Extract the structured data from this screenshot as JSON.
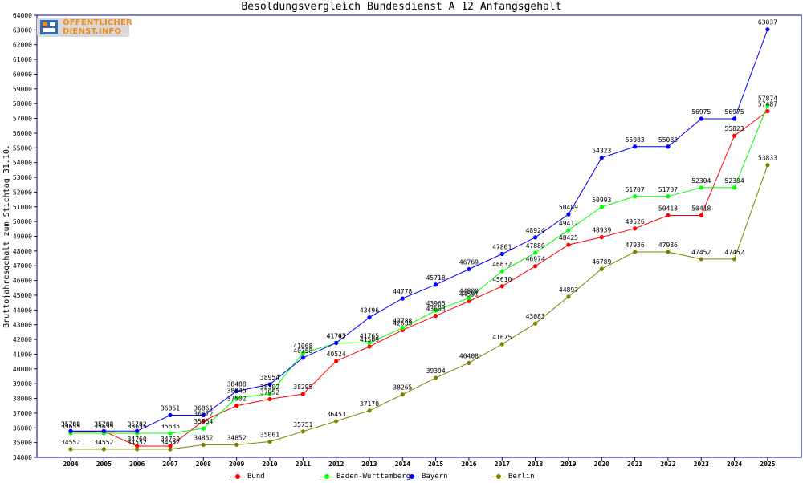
{
  "title": "Besoldungsvergleich Bundesdienst A 12 Anfangsgehalt",
  "logo": {
    "line1": "ÖFFENTLICHER",
    "line2": "DIENST.INFO"
  },
  "chart_data": {
    "type": "line",
    "title": "Besoldungsvergleich Bundesdienst A 12 Anfangsgehalt",
    "xlabel": "",
    "ylabel": "Bruttojahresgehalt zum Stichtag 31.10.",
    "ylim": [
      34000,
      64000
    ],
    "ystep": 1000,
    "grid": false,
    "legend_position": "bottom",
    "categories": [
      "2004",
      "2005",
      "2006",
      "2007",
      "2008",
      "2009",
      "2010",
      "2011",
      "2012",
      "2013",
      "2014",
      "2015",
      "2016",
      "2017",
      "2018",
      "2019",
      "2020",
      "2021",
      "2022",
      "2023",
      "2024",
      "2025"
    ],
    "series": [
      {
        "name": "Bund",
        "color": "#ff0000",
        "values": [
          35766,
          35766,
          34760,
          34760,
          36472,
          37502,
          37952,
          38295,
          40524,
          41509,
          42633,
          43603,
          44591,
          45610,
          46974,
          48425,
          48939,
          49526,
          50418,
          50418,
          55823,
          57487
        ]
      },
      {
        "name": "Baden-Württemberg",
        "color": "#00ff00",
        "values": [
          35635,
          35635,
          35635,
          35635,
          35954,
          38045,
          38302,
          41068,
          41747,
          41765,
          42788,
          43965,
          44800,
          46632,
          47880,
          49412,
          50993,
          51707,
          51707,
          52304,
          52304,
          57874
        ]
      },
      {
        "name": "Bayern",
        "color": "#0000ff",
        "values": [
          35782,
          35782,
          35782,
          36861,
          36861,
          38488,
          38954,
          40758,
          41765,
          43496,
          44778,
          45718,
          46769,
          47801,
          48924,
          50489,
          54323,
          55083,
          55083,
          56975,
          56975,
          63037
        ]
      },
      {
        "name": "Berlin",
        "color": "#808000",
        "values": [
          34552,
          34552,
          34552,
          34552,
          34852,
          34852,
          35061,
          35751,
          36453,
          37170,
          38265,
          39394,
          40408,
          41675,
          43083,
          44897,
          46789,
          47936,
          47936,
          47452,
          47452,
          53833
        ]
      }
    ]
  }
}
